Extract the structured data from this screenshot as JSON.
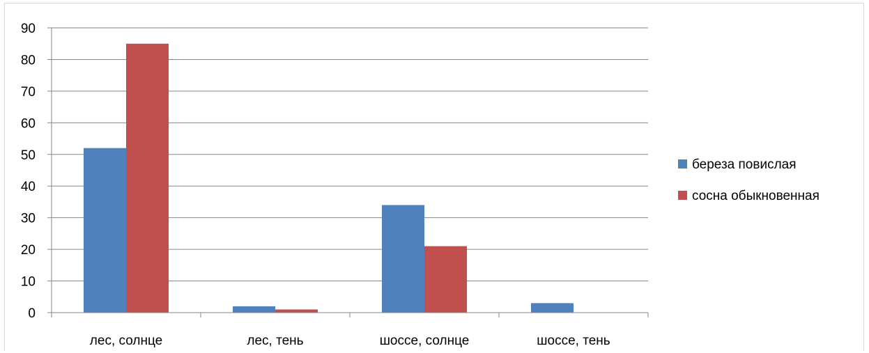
{
  "chart_data": {
    "type": "bar",
    "categories": [
      "лес, солнце",
      "лес, тень",
      "шоссе, солнце",
      "шоссе, тень"
    ],
    "series": [
      {
        "name": "береза повислая",
        "color": "#4f81bd",
        "values": [
          52,
          2,
          34,
          3
        ]
      },
      {
        "name": "сосна обыкновенная",
        "color": "#c0504d",
        "values": [
          85,
          1,
          21,
          0
        ]
      }
    ],
    "y_ticks": [
      "0",
      "10",
      "20",
      "30",
      "40",
      "50",
      "60",
      "70",
      "80",
      "90"
    ],
    "ylim": [
      0,
      90
    ],
    "grid": true,
    "legend_position": "right",
    "gridline_color": "#868686"
  }
}
